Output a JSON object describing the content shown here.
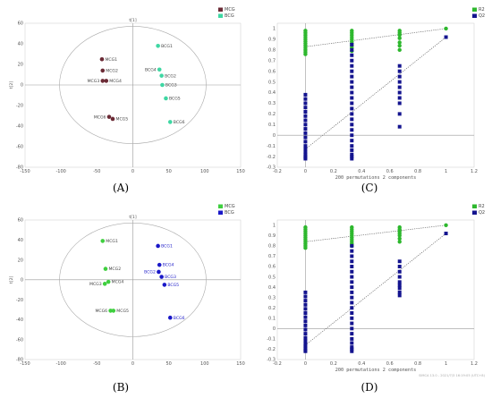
{
  "colors": {
    "mcg_a": "#6b2a35",
    "bcg_a": "#3fd7a3",
    "mcg_b": "#3fcf3f",
    "bcg_b": "#1a18c8",
    "r2": "#2eb82e",
    "q2": "#14148f",
    "axis": "#999999"
  },
  "chart_data": [
    {
      "panel": "A",
      "type": "scatter",
      "xlabel": "t[1]",
      "ylabel": "t[2]",
      "xlim": [
        -150,
        150
      ],
      "ylim": [
        -80,
        60
      ],
      "xticks": [
        -150,
        -100,
        -50,
        0,
        50,
        100,
        150
      ],
      "yticks": [
        -80,
        -60,
        -40,
        -20,
        0,
        20,
        40,
        60
      ],
      "legend_position": "top-right",
      "series": [
        {
          "name": "MCG",
          "color": "#6b2a35",
          "points": [
            {
              "label": "MCG1",
              "x": -43,
              "y": 25
            },
            {
              "label": "MCG2",
              "x": -42,
              "y": 14
            },
            {
              "label": "MCG3",
              "x": -42,
              "y": 4
            },
            {
              "label": "MCG4",
              "x": -37,
              "y": 4
            },
            {
              "label": "MCG6",
              "x": -33,
              "y": -31
            },
            {
              "label": "MCG5",
              "x": -28,
              "y": -33
            }
          ]
        },
        {
          "name": "BCG",
          "color": "#3fd7a3",
          "points": [
            {
              "label": "BCG1",
              "x": 35,
              "y": 38
            },
            {
              "label": "BCG4",
              "x": 37,
              "y": 15
            },
            {
              "label": "BCG2",
              "x": 40,
              "y": 9
            },
            {
              "label": "BCG3",
              "x": 41,
              "y": 0
            },
            {
              "label": "BCG5",
              "x": 46,
              "y": -13
            },
            {
              "label": "BCG6",
              "x": 52,
              "y": -36
            }
          ]
        }
      ]
    },
    {
      "panel": "B",
      "type": "scatter",
      "xlabel": "t[1]",
      "ylabel": "t[2]",
      "xlim": [
        -150,
        150
      ],
      "ylim": [
        -80,
        60
      ],
      "xticks": [
        -150,
        -100,
        -50,
        0,
        50,
        100,
        150
      ],
      "yticks": [
        -80,
        -60,
        -40,
        -20,
        0,
        20,
        40,
        60
      ],
      "legend_position": "top-right",
      "series": [
        {
          "name": "MCG",
          "color": "#3fcf3f",
          "points": [
            {
              "label": "MCG1",
              "x": -42,
              "y": 39
            },
            {
              "label": "MCG2",
              "x": -38,
              "y": 11
            },
            {
              "label": "MCG3",
              "x": -39,
              "y": -4
            },
            {
              "label": "MCG4",
              "x": -34,
              "y": -2
            },
            {
              "label": "MCG6",
              "x": -31,
              "y": -31
            },
            {
              "label": "MCG5",
              "x": -27,
              "y": -31
            }
          ]
        },
        {
          "name": "BCG",
          "color": "#1a18c8",
          "points": [
            {
              "label": "BCG1",
              "x": 35,
              "y": 34
            },
            {
              "label": "BCG4",
              "x": 37,
              "y": 15
            },
            {
              "label": "BCG2",
              "x": 36,
              "y": 8
            },
            {
              "label": "BCG3",
              "x": 40,
              "y": 3
            },
            {
              "label": "BCG5",
              "x": 44,
              "y": -5
            },
            {
              "label": "BCG6",
              "x": 52,
              "y": -38
            }
          ]
        }
      ]
    },
    {
      "panel": "C",
      "type": "scatter",
      "subtitle": "200 permutations 2 components",
      "xlim": [
        -0.2,
        1.2
      ],
      "ylim": [
        -0.3,
        1.05
      ],
      "xticks": [
        -0.2,
        0,
        0.2,
        0.4,
        0.6,
        0.8,
        1,
        1.2
      ],
      "yticks": [
        -0.3,
        -0.2,
        -0.1,
        0,
        0.1,
        0.2,
        0.3,
        0.4,
        0.5,
        0.6,
        0.7,
        0.8,
        0.9,
        1
      ],
      "legend_position": "top-right",
      "series": [
        {
          "name": "R2",
          "color": "#2eb82e",
          "x": [
            0,
            0,
            0,
            0,
            0,
            0,
            0,
            0,
            0,
            0,
            0,
            0,
            0.33,
            0.33,
            0.33,
            0.33,
            0.33,
            0.33,
            0.33,
            0.33,
            0.33,
            0.33,
            0.67,
            0.67,
            0.67,
            0.67,
            0.67,
            0.67,
            0.67,
            1
          ],
          "y": [
            0.98,
            0.96,
            0.94,
            0.92,
            0.9,
            0.88,
            0.86,
            0.84,
            0.82,
            0.8,
            0.78,
            0.76,
            0.98,
            0.96,
            0.94,
            0.92,
            0.9,
            0.88,
            0.86,
            0.84,
            0.82,
            0.79,
            0.98,
            0.96,
            0.94,
            0.91,
            0.87,
            0.84,
            0.8,
            1.0
          ],
          "regression": [
            [
              0,
              0.83
            ],
            [
              1,
              1.0
            ]
          ]
        },
        {
          "name": "Q2",
          "color": "#14148f",
          "x": [
            0,
            0,
            0,
            0,
            0,
            0,
            0,
            0,
            0,
            0,
            0,
            0,
            0,
            0,
            0,
            0,
            0,
            0,
            0,
            0.33,
            0.33,
            0.33,
            0.33,
            0.33,
            0.33,
            0.33,
            0.33,
            0.33,
            0.33,
            0.33,
            0.33,
            0.33,
            0.33,
            0.33,
            0.33,
            0.33,
            0.33,
            0.33,
            0.33,
            0.33,
            0.33,
            0.33,
            0.33,
            0.67,
            0.67,
            0.67,
            0.67,
            0.67,
            0.67,
            0.67,
            0.67,
            0.67,
            0.67,
            1
          ],
          "y": [
            0.38,
            0.34,
            0.3,
            0.26,
            0.22,
            0.18,
            0.14,
            0.1,
            0.06,
            0.02,
            -0.02,
            -0.06,
            -0.1,
            -0.13,
            -0.16,
            -0.18,
            -0.2,
            -0.21,
            -0.22,
            0.85,
            0.8,
            0.75,
            0.7,
            0.65,
            0.6,
            0.55,
            0.5,
            0.45,
            0.4,
            0.35,
            0.3,
            0.25,
            0.2,
            0.15,
            0.1,
            0.05,
            0.0,
            -0.05,
            -0.1,
            -0.14,
            -0.18,
            -0.2,
            -0.22,
            0.65,
            0.6,
            0.55,
            0.5,
            0.45,
            0.4,
            0.35,
            0.3,
            0.2,
            0.08,
            0.92
          ],
          "regression": [
            [
              0,
              -0.13
            ],
            [
              1,
              0.92
            ]
          ]
        }
      ]
    },
    {
      "panel": "D",
      "type": "scatter",
      "subtitle": "200 permutations 2 components",
      "footer": "SIMCA 13.0 - 2021/7/3 16:19:05 (UTC+8)",
      "xlim": [
        -0.2,
        1.2
      ],
      "ylim": [
        -0.3,
        1.05
      ],
      "xticks": [
        -0.2,
        0,
        0.2,
        0.4,
        0.6,
        0.8,
        1,
        1.2
      ],
      "yticks": [
        -0.3,
        -0.2,
        -0.1,
        0,
        0.1,
        0.2,
        0.3,
        0.4,
        0.5,
        0.6,
        0.7,
        0.8,
        0.9,
        1
      ],
      "legend_position": "top-right",
      "series": [
        {
          "name": "R2",
          "color": "#2eb82e",
          "x": [
            0,
            0,
            0,
            0,
            0,
            0,
            0,
            0,
            0,
            0,
            0,
            0.33,
            0.33,
            0.33,
            0.33,
            0.33,
            0.33,
            0.33,
            0.33,
            0.33,
            0.33,
            0.67,
            0.67,
            0.67,
            0.67,
            0.67,
            0.67,
            0.67,
            1
          ],
          "y": [
            0.98,
            0.96,
            0.94,
            0.92,
            0.9,
            0.88,
            0.86,
            0.84,
            0.82,
            0.8,
            0.78,
            0.98,
            0.96,
            0.94,
            0.92,
            0.9,
            0.88,
            0.86,
            0.84,
            0.82,
            0.8,
            0.98,
            0.96,
            0.94,
            0.92,
            0.9,
            0.87,
            0.84,
            1.0
          ],
          "regression": [
            [
              0,
              0.84
            ],
            [
              1,
              1.0
            ]
          ]
        },
        {
          "name": "Q2",
          "color": "#14148f",
          "x": [
            0,
            0,
            0,
            0,
            0,
            0,
            0,
            0,
            0,
            0,
            0,
            0,
            0,
            0,
            0,
            0,
            0,
            0,
            0.33,
            0.33,
            0.33,
            0.33,
            0.33,
            0.33,
            0.33,
            0.33,
            0.33,
            0.33,
            0.33,
            0.33,
            0.33,
            0.33,
            0.33,
            0.33,
            0.33,
            0.33,
            0.33,
            0.33,
            0.33,
            0.33,
            0.33,
            0.67,
            0.67,
            0.67,
            0.67,
            0.67,
            0.67,
            0.67,
            0.67,
            0.67,
            1
          ],
          "y": [
            0.35,
            0.31,
            0.27,
            0.23,
            0.19,
            0.15,
            0.11,
            0.07,
            0.03,
            -0.01,
            -0.05,
            -0.09,
            -0.12,
            -0.15,
            -0.17,
            -0.19,
            -0.21,
            -0.22,
            0.8,
            0.75,
            0.7,
            0.65,
            0.6,
            0.55,
            0.5,
            0.45,
            0.4,
            0.35,
            0.3,
            0.25,
            0.2,
            0.15,
            0.1,
            0.05,
            0.0,
            -0.05,
            -0.1,
            -0.14,
            -0.18,
            -0.2,
            -0.22,
            0.65,
            0.6,
            0.55,
            0.5,
            0.45,
            0.42,
            0.39,
            0.35,
            0.32,
            0.92
          ],
          "regression": [
            [
              0,
              -0.16
            ],
            [
              1,
              0.92
            ]
          ]
        }
      ]
    }
  ],
  "captions": [
    "(A)",
    "(B)",
    "(C)",
    "(D)"
  ]
}
